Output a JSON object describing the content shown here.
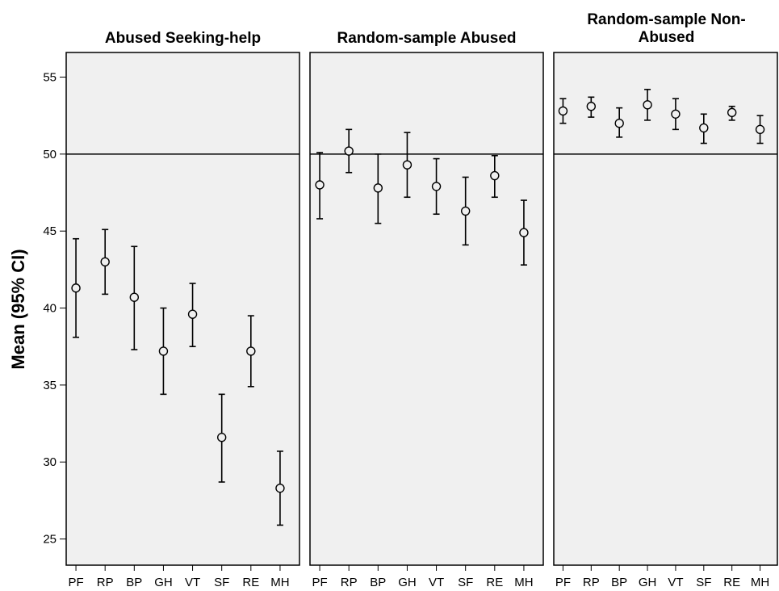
{
  "chart_data": {
    "type": "errorbar",
    "ylabel": "Mean (95% CI)",
    "ylim": [
      23.3,
      56.6
    ],
    "yticks": [
      25,
      30,
      35,
      40,
      45,
      50,
      55
    ],
    "reference_line": 50,
    "categories": [
      "PF",
      "RP",
      "BP",
      "GH",
      "VT",
      "SF",
      "RE",
      "MH"
    ],
    "grid": false,
    "panels": [
      {
        "title": "Abused Seeking-help",
        "mean": [
          41.3,
          43.0,
          40.7,
          37.2,
          39.6,
          31.6,
          37.2,
          28.3
        ],
        "lower": [
          38.1,
          40.9,
          37.3,
          34.4,
          37.5,
          28.7,
          34.9,
          25.9
        ],
        "upper": [
          44.5,
          45.1,
          44.0,
          40.0,
          41.6,
          34.4,
          39.5,
          30.7
        ]
      },
      {
        "title": "Random-sample Abused",
        "mean": [
          48.0,
          50.2,
          47.8,
          49.3,
          47.9,
          46.3,
          48.6,
          44.9
        ],
        "lower": [
          45.8,
          48.8,
          45.5,
          47.2,
          46.1,
          44.1,
          47.2,
          42.8
        ],
        "upper": [
          50.1,
          51.6,
          50.0,
          51.4,
          49.7,
          48.5,
          49.9,
          47.0
        ]
      },
      {
        "title": "Random-sample Non-Abused",
        "title_lines": [
          "Random-sample Non-",
          "Abused"
        ],
        "mean": [
          52.8,
          53.1,
          52.0,
          53.2,
          52.6,
          51.7,
          52.7,
          51.6
        ],
        "lower": [
          52.0,
          52.4,
          51.1,
          52.2,
          51.6,
          50.7,
          52.2,
          50.7
        ],
        "upper": [
          53.6,
          53.7,
          53.0,
          54.2,
          53.6,
          52.6,
          53.1,
          52.5
        ]
      }
    ]
  }
}
